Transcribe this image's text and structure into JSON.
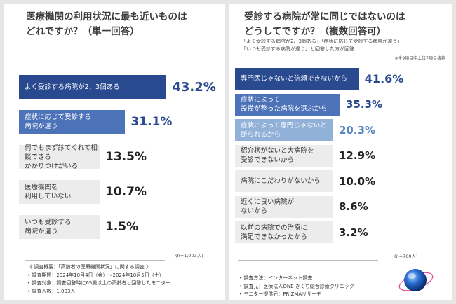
{
  "left": {
    "title": "医療機関の利用状況に最も近いものは\nどれですか？（単一回答）",
    "n_note": "(n=1,003人)",
    "survey": [
      "《 調査概要：「高齢者の医療機関状況」に関する調査 》",
      "• 調査期間：2024年10月4日（金）〜2024年10月5日（土）",
      "• 調査対象：調査回答時に65歳以上の高齢者と回答したモニター",
      "• 調査人数：1,003人"
    ]
  },
  "right": {
    "title": "受診する病院が常に同じではないのは\nどうしてですか？（複数回答可）",
    "subnote": "「よく受診する病院が2、3個ある」「症状に応じて受診する病院が違う」\n「いつも受診する病院が違う」と回答した方が回答",
    "subnote2": "※全9項目中上位7項目抜粋",
    "n_note": "(n=760人)",
    "survey": [
      "• 調査方法：インターネット調査",
      "• 調査元：医療法人ONE きくち総合診療クリニック",
      "• モニター提供元：PRIZMAリサーチ"
    ]
  },
  "chart_data": [
    {
      "type": "bar",
      "title": "医療機関の利用状況に最も近いものはどれですか？（単一回答）",
      "categories": [
        "よく受診する病院が2、3個ある",
        "症状に応じて受診する\n病院が違う",
        "何でもまず診てくれて相談できる\nかかりつけがいる",
        "医療機関を\n利用していない",
        "いつも受診する\n病院が違う"
      ],
      "values": [
        43.2,
        31.1,
        13.5,
        10.7,
        1.5
      ],
      "labels": [
        "43.2%",
        "31.1%",
        "13.5%",
        "10.7%",
        "1.5%"
      ],
      "colors": {
        "top1": "#2a4a8f",
        "top2": "#4c72b8",
        "rest": "#ececec"
      }
    },
    {
      "type": "bar",
      "title": "受診する病院が常に同じではないのはどうしてですか？（複数回答可）",
      "categories": [
        "専門医じゃないと信頼できないから",
        "症状によって\n設備が整った病院を選ぶから",
        "症状によって専門じゃないと\n断られるから",
        "紹介状がないと大病院を\n受診できないから",
        "病院にこだわりがないから",
        "近くに良い病院が\nないから",
        "以前の病院での治療に\n満足できなかったから"
      ],
      "values": [
        41.6,
        35.3,
        20.3,
        12.9,
        10.0,
        8.6,
        3.2
      ],
      "labels": [
        "41.6%",
        "35.3%",
        "20.3%",
        "12.9%",
        "10.0%",
        "8.6%",
        "3.2%"
      ],
      "colors": {
        "top1": "#2a4a8f",
        "top2": "#4c72b8",
        "top3": "#92b1d8",
        "rest": "#ececec"
      }
    }
  ]
}
